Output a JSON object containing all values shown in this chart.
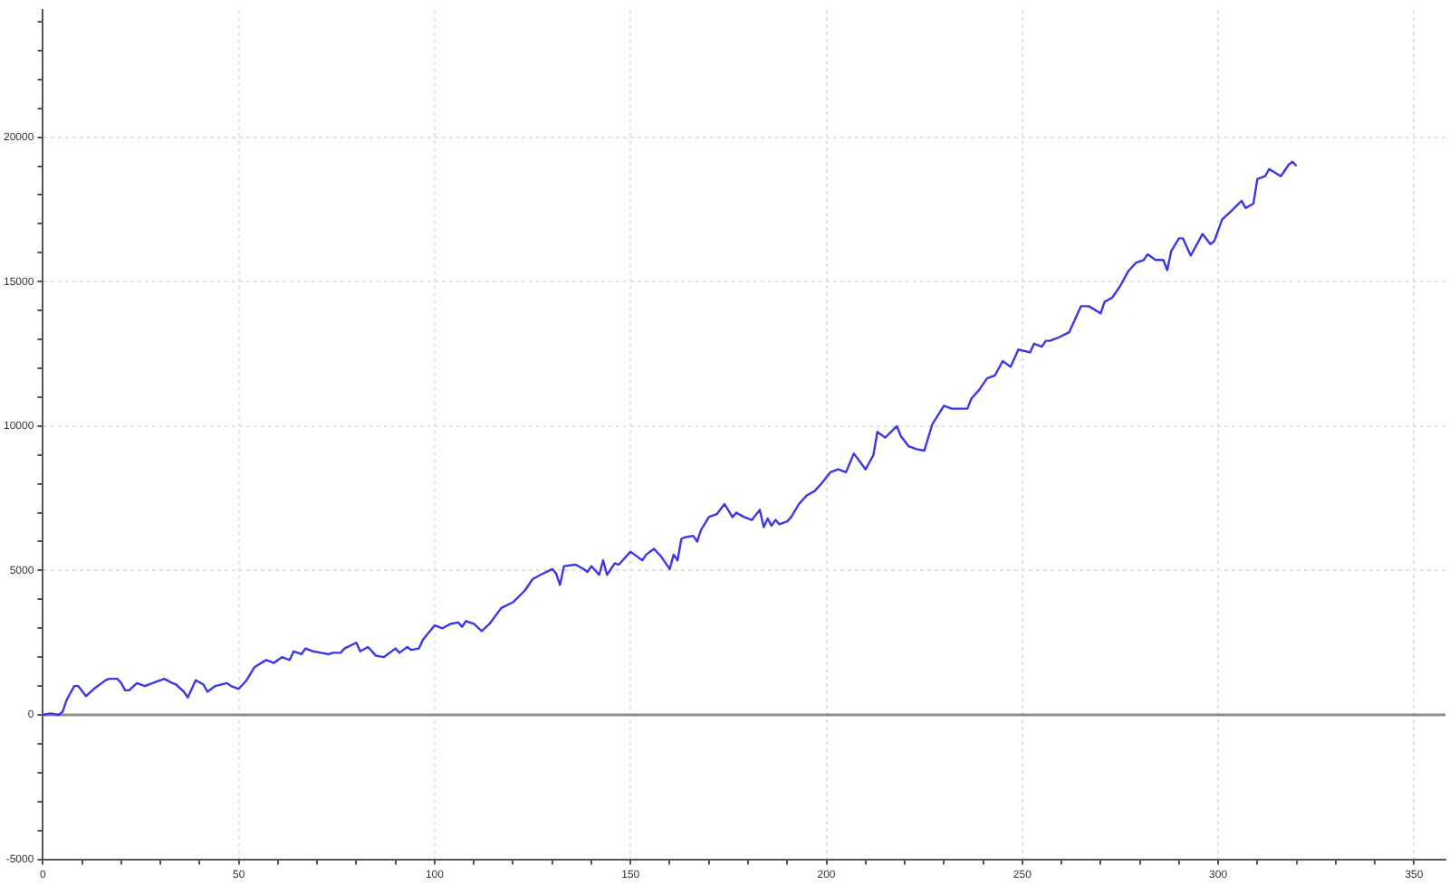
{
  "chart_data": {
    "type": "line",
    "legend": false,
    "grid": true,
    "marker": "none",
    "line_style": "solid",
    "xlim": [
      0,
      358
    ],
    "ylim": [
      -5000,
      24400
    ],
    "xticks": [
      0,
      {
        "value": 10,
        "label": null
      },
      {
        "value": 20,
        "label": null
      },
      {
        "value": 30,
        "label": null
      },
      {
        "value": 40,
        "label": null
      },
      50,
      {
        "value": 60,
        "label": null
      },
      {
        "value": 70,
        "label": null
      },
      {
        "value": 80,
        "label": null
      },
      {
        "value": 90,
        "label": null
      },
      100,
      {
        "value": 110,
        "label": null
      },
      {
        "value": 120,
        "label": null
      },
      {
        "value": 130,
        "label": null
      },
      {
        "value": 140,
        "label": null
      },
      150,
      {
        "value": 160,
        "label": null
      },
      {
        "value": 170,
        "label": null
      },
      {
        "value": 180,
        "label": null
      },
      {
        "value": 190,
        "label": null
      },
      200,
      {
        "value": 210,
        "label": null
      },
      {
        "value": 220,
        "label": null
      },
      {
        "value": 230,
        "label": null
      },
      {
        "value": 240,
        "label": null
      },
      250,
      {
        "value": 260,
        "label": null
      },
      {
        "value": 270,
        "label": null
      },
      {
        "value": 280,
        "label": null
      },
      {
        "value": 290,
        "label": null
      },
      300,
      {
        "value": 310,
        "label": null
      },
      {
        "value": 320,
        "label": null
      },
      {
        "value": 330,
        "label": null
      },
      {
        "value": 340,
        "label": null
      },
      350
    ],
    "yticks": [
      -5000,
      {
        "value": -4000,
        "label": null
      },
      {
        "value": -3000,
        "label": null
      },
      {
        "value": -2000,
        "label": null
      },
      {
        "value": -1000,
        "label": null
      },
      0,
      {
        "value": 1000,
        "label": null
      },
      {
        "value": 2000,
        "label": null
      },
      {
        "value": 3000,
        "label": null
      },
      {
        "value": 4000,
        "label": null
      },
      5000,
      {
        "value": 6000,
        "label": null
      },
      {
        "value": 7000,
        "label": null
      },
      {
        "value": 8000,
        "label": null
      },
      {
        "value": 9000,
        "label": null
      },
      10000,
      {
        "value": 11000,
        "label": null
      },
      {
        "value": 12000,
        "label": null
      },
      {
        "value": 13000,
        "label": null
      },
      {
        "value": 14000,
        "label": null
      },
      15000,
      {
        "value": 16000,
        "label": null
      },
      {
        "value": 17000,
        "label": null
      },
      {
        "value": 18000,
        "label": null
      },
      {
        "value": 19000,
        "label": null
      },
      20000,
      {
        "value": 21000,
        "label": null
      },
      {
        "value": 22000,
        "label": null
      },
      {
        "value": 23000,
        "label": null
      },
      {
        "value": 24000,
        "label": null
      }
    ],
    "ref_lines": [
      {
        "axis": "y",
        "value": 0,
        "color": "#8c8c8c"
      }
    ],
    "x": [
      0,
      2,
      4,
      5,
      6,
      8,
      9,
      11,
      13,
      15,
      16,
      17,
      19,
      20,
      21,
      22,
      24,
      26,
      28,
      31,
      33,
      34,
      36,
      37,
      39,
      41,
      42,
      44,
      47,
      48,
      50,
      52,
      54,
      57,
      59,
      61,
      63,
      64,
      66,
      67,
      69,
      71,
      73,
      74,
      76,
      77,
      80,
      81,
      83,
      85,
      87,
      90,
      91,
      93,
      94,
      96,
      97,
      100,
      102,
      104,
      106,
      107,
      108,
      110,
      112,
      114,
      117,
      120,
      123,
      125,
      127,
      130,
      131,
      132,
      133,
      136,
      138,
      139,
      140,
      142,
      143,
      144,
      146,
      147,
      150,
      151,
      153,
      154,
      156,
      158,
      160,
      161,
      162,
      163,
      164,
      166,
      167,
      168,
      170,
      172,
      174,
      176,
      177,
      179,
      181,
      183,
      184,
      185,
      186,
      187,
      188,
      190,
      191,
      193,
      195,
      197,
      199,
      201,
      203,
      205,
      207,
      210,
      212,
      213,
      215,
      218,
      219,
      221,
      223,
      225,
      227,
      230,
      232,
      236,
      237,
      239,
      241,
      243,
      245,
      247,
      249,
      252,
      253,
      255,
      256,
      257,
      259,
      262,
      265,
      267,
      270,
      271,
      273,
      275,
      277,
      279,
      281,
      282,
      284,
      286,
      287,
      288,
      290,
      291,
      293,
      296,
      298,
      299,
      301,
      303,
      306,
      307,
      309,
      310,
      312,
      313,
      316,
      318,
      319,
      320
    ],
    "series": [
      {
        "color": "#3c36e8",
        "values": [
          0,
          50,
          0,
          100,
          500,
          1000,
          1000,
          650,
          900,
          1100,
          1200,
          1250,
          1250,
          1100,
          850,
          850,
          1100,
          1000,
          1100,
          1250,
          1100,
          1050,
          800,
          600,
          1200,
          1050,
          800,
          1000,
          1100,
          1000,
          900,
          1200,
          1650,
          1900,
          1800,
          2000,
          1900,
          2200,
          2100,
          2300,
          2200,
          2150,
          2100,
          2150,
          2150,
          2300,
          2500,
          2200,
          2350,
          2050,
          2000,
          2300,
          2150,
          2350,
          2250,
          2300,
          2600,
          3100,
          3000,
          3150,
          3200,
          3050,
          3250,
          3150,
          2900,
          3150,
          3700,
          3900,
          4300,
          4700,
          4850,
          5050,
          4900,
          4500,
          5150,
          5200,
          5050,
          4950,
          5150,
          4850,
          5350,
          4850,
          5250,
          5200,
          5650,
          5550,
          5350,
          5550,
          5750,
          5450,
          5050,
          5550,
          5350,
          6100,
          6150,
          6200,
          6000,
          6400,
          6850,
          6950,
          7300,
          6850,
          7000,
          6850,
          6750,
          7100,
          6500,
          6800,
          6550,
          6750,
          6600,
          6700,
          6850,
          7300,
          7600,
          7750,
          8050,
          8400,
          8500,
          8400,
          9050,
          8500,
          9000,
          9800,
          9600,
          10000,
          9650,
          9300,
          9200,
          9150,
          10050,
          10700,
          10600,
          10600,
          10950,
          11250,
          11650,
          11750,
          12250,
          12050,
          12650,
          12550,
          12850,
          12750,
          12950,
          12950,
          13050,
          13250,
          14150,
          14150,
          13900,
          14300,
          14450,
          14850,
          15350,
          15650,
          15750,
          15950,
          15750,
          15750,
          15400,
          16050,
          16500,
          16500,
          15900,
          16650,
          16300,
          16400,
          17150,
          17400,
          17800,
          17550,
          17700,
          18550,
          18650,
          18900,
          18650,
          19050,
          19150,
          19000
        ]
      }
    ]
  }
}
